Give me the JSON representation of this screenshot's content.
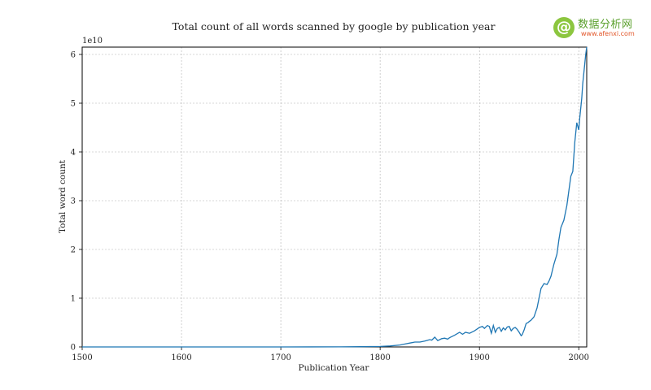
{
  "watermark": {
    "name": "数据分析网",
    "url": "www.afenxi.com",
    "logo_color": "#8cc63f",
    "logo_glyph": "@"
  },
  "chart_data": {
    "type": "line",
    "title": "Total count of all words scanned by google by publication year",
    "xlabel": "Publication Year",
    "ylabel": "Total word count",
    "y_offset_text": "1e10",
    "xlim": [
      1500,
      2008
    ],
    "ylim": [
      0,
      6.15
    ],
    "x_ticks": [
      1500,
      1600,
      1700,
      1800,
      1900,
      2000
    ],
    "y_ticks": [
      0,
      1,
      2,
      3,
      4,
      5,
      6
    ],
    "grid": true,
    "line_color": "#1f77b4",
    "series": [
      {
        "name": "Total word count (×1e10)",
        "x": [
          1500,
          1600,
          1700,
          1760,
          1780,
          1800,
          1810,
          1820,
          1825,
          1830,
          1835,
          1840,
          1845,
          1850,
          1852,
          1855,
          1858,
          1860,
          1862,
          1865,
          1868,
          1870,
          1875,
          1880,
          1883,
          1886,
          1890,
          1895,
          1900,
          1903,
          1905,
          1908,
          1910,
          1912,
          1914,
          1916,
          1918,
          1920,
          1922,
          1924,
          1926,
          1928,
          1930,
          1932,
          1934,
          1936,
          1938,
          1940,
          1942,
          1943,
          1945,
          1947,
          1949,
          1950,
          1952,
          1955,
          1958,
          1960,
          1962,
          1965,
          1968,
          1970,
          1972,
          1975,
          1978,
          1980,
          1982,
          1985,
          1988,
          1990,
          1992,
          1994,
          1996,
          1998,
          2000,
          2001,
          2002,
          2003,
          2004,
          2005,
          2006,
          2007,
          2008
        ],
        "values": [
          0,
          0,
          0,
          0.002,
          0.005,
          0.01,
          0.02,
          0.04,
          0.06,
          0.08,
          0.1,
          0.1,
          0.12,
          0.15,
          0.14,
          0.2,
          0.13,
          0.15,
          0.17,
          0.18,
          0.16,
          0.19,
          0.24,
          0.3,
          0.26,
          0.3,
          0.28,
          0.33,
          0.4,
          0.42,
          0.38,
          0.44,
          0.42,
          0.28,
          0.44,
          0.3,
          0.38,
          0.4,
          0.32,
          0.39,
          0.35,
          0.41,
          0.42,
          0.33,
          0.38,
          0.4,
          0.36,
          0.3,
          0.23,
          0.25,
          0.35,
          0.48,
          0.5,
          0.52,
          0.55,
          0.62,
          0.8,
          1.0,
          1.2,
          1.3,
          1.28,
          1.35,
          1.45,
          1.7,
          1.9,
          2.2,
          2.45,
          2.6,
          2.9,
          3.2,
          3.5,
          3.6,
          4.2,
          4.6,
          4.45,
          4.7,
          4.9,
          5.1,
          5.4,
          5.6,
          5.8,
          6.0,
          6.15
        ]
      }
    ]
  }
}
